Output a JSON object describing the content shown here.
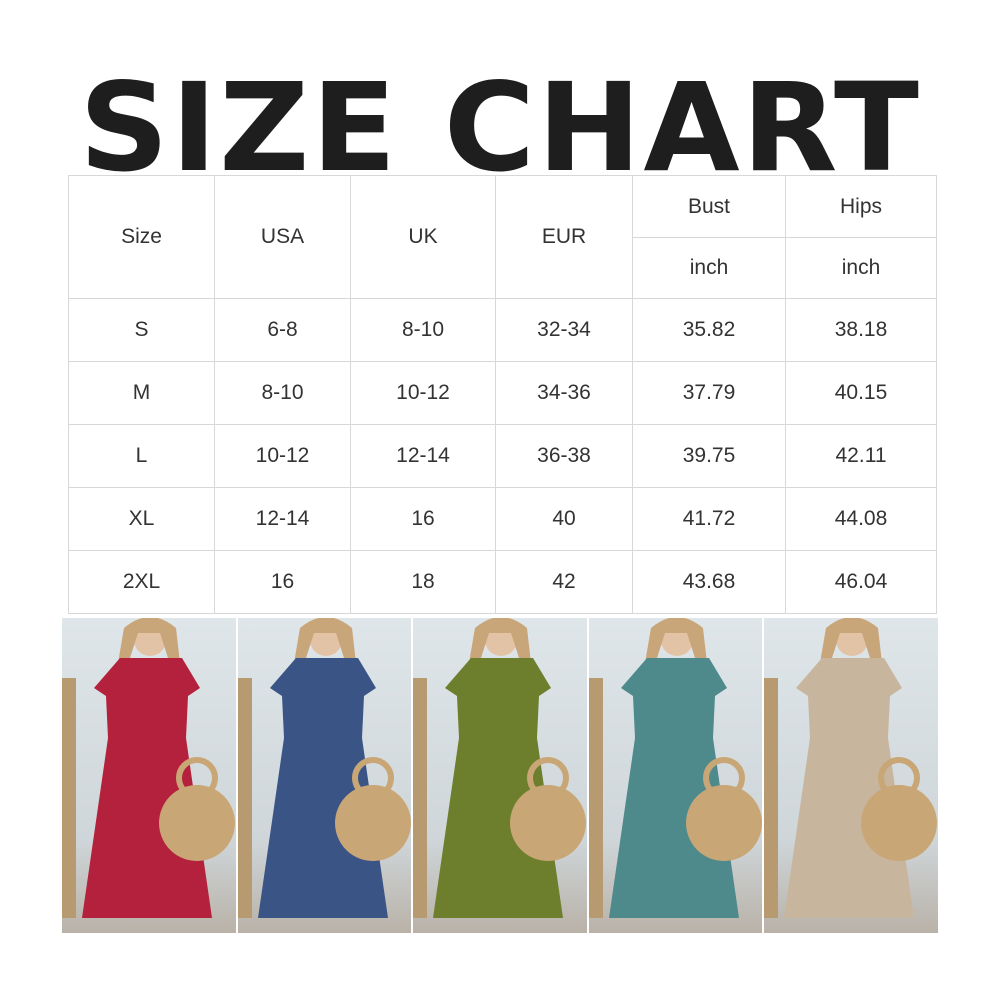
{
  "title": "SIZE CHART",
  "table": {
    "headers": [
      "Size",
      "USA",
      "UK",
      "EUR",
      "Bust",
      "Hips"
    ],
    "units": [
      "inch",
      "inch"
    ],
    "rows": [
      [
        "S",
        "6-8",
        "8-10",
        "32-34",
        "35.82",
        "38.18"
      ],
      [
        "M",
        "8-10",
        "10-12",
        "34-36",
        "37.79",
        "40.15"
      ],
      [
        "L",
        "10-12",
        "12-14",
        "36-38",
        "39.75",
        "42.11"
      ],
      [
        "XL",
        "12-14",
        "16",
        "40",
        "41.72",
        "44.08"
      ],
      [
        "2XL",
        "16",
        "18",
        "42",
        "43.68",
        "46.04"
      ]
    ]
  },
  "photos": [
    {
      "color_name": "red",
      "color": "#b3213c"
    },
    {
      "color_name": "navy",
      "color": "#3a5585"
    },
    {
      "color_name": "olive",
      "color": "#6d7f2c"
    },
    {
      "color_name": "teal",
      "color": "#4e8a8b"
    },
    {
      "color_name": "beige",
      "color": "#c8b59e"
    }
  ],
  "bag_color": "#c9a676"
}
